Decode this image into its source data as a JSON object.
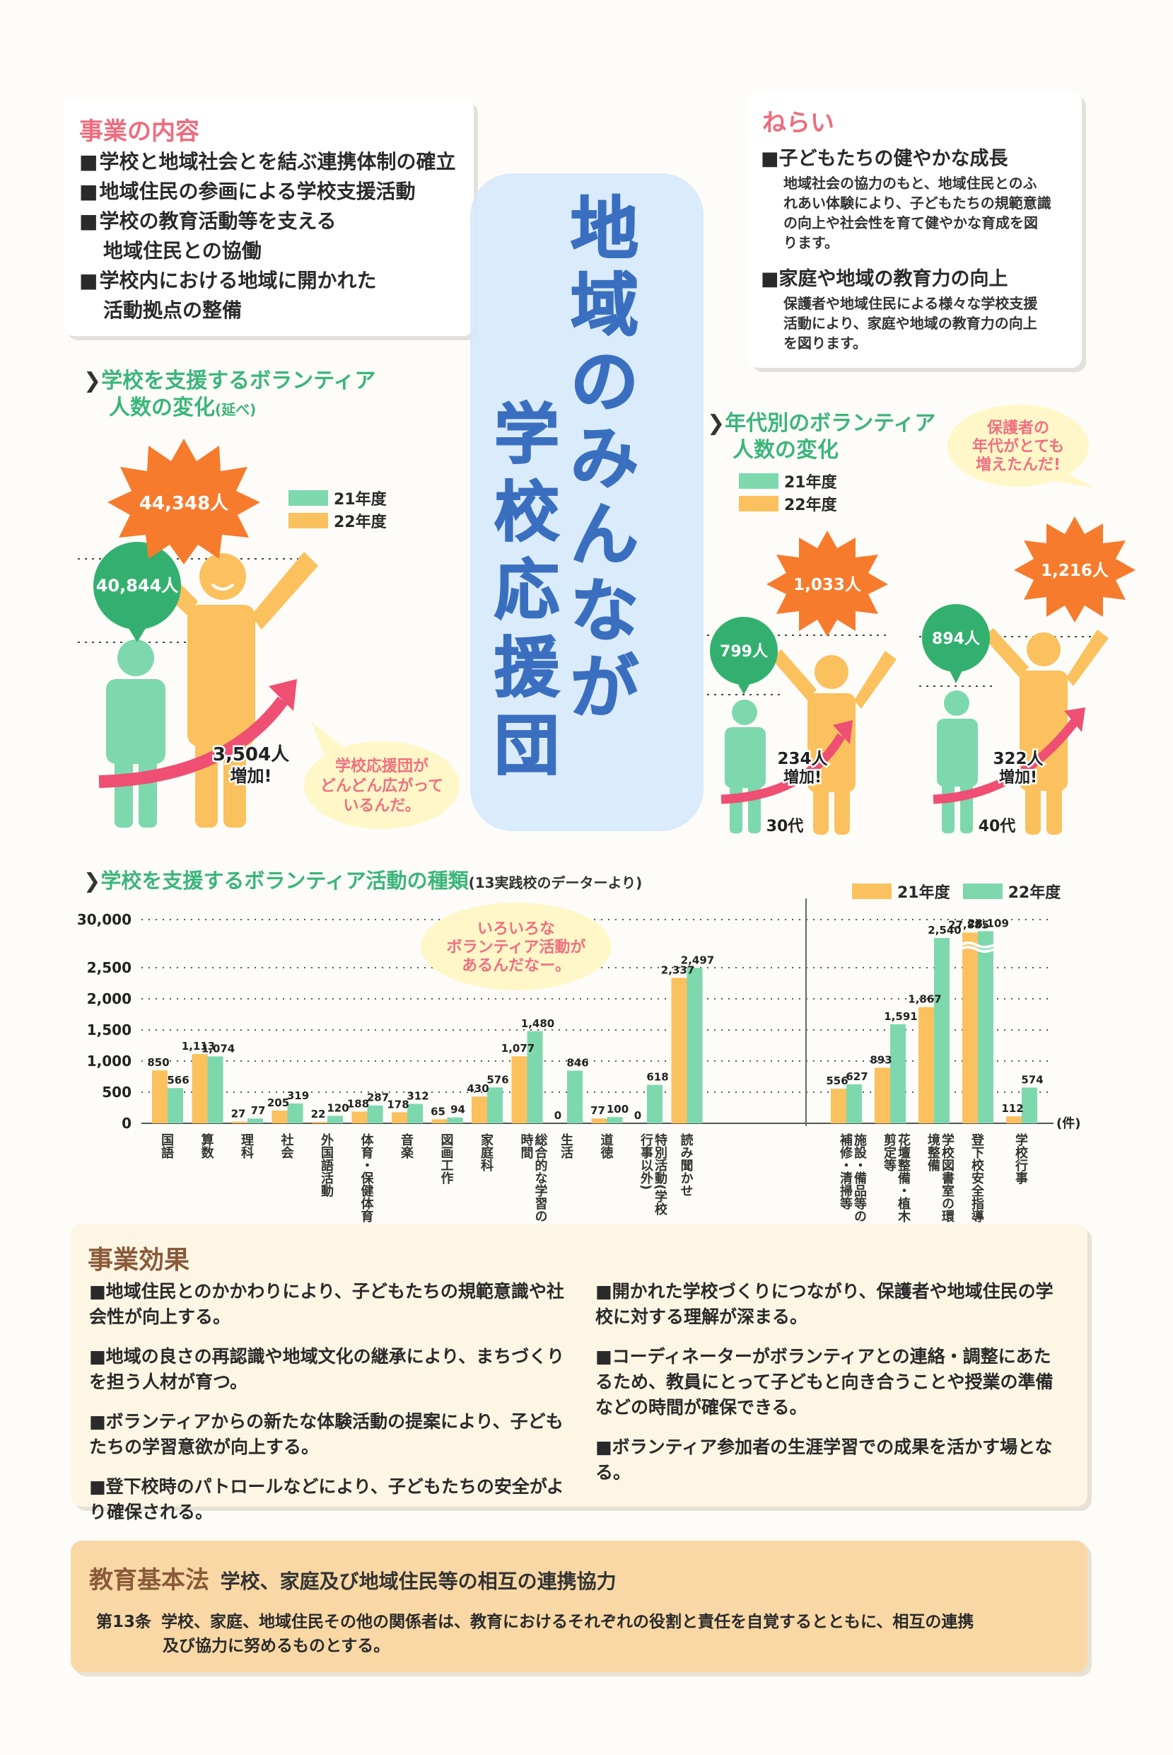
{
  "content_section": {
    "heading": "事業の内容",
    "items": [
      "学校と地域社会とを結ぶ連携体制の確立",
      "地域住民の参画による学校支援活動",
      "学校の教育活動等を支える",
      "地域住民との協働",
      "学校内における地域に開かれた",
      "活動拠点の整備"
    ]
  },
  "main_title": [
    "地",
    "域",
    "の",
    "み",
    "ん",
    "な",
    "が",
    "学",
    "校",
    "応",
    "援",
    "団"
  ],
  "aims": {
    "heading": "ねらい",
    "item1_title": "子どもたちの健やかな成長",
    "item1_body": [
      "地域社会の協力のもと、地域住民とのふ",
      "れあい体験により、子どもたちの規範意識",
      "の向上や社会性を育て健やかな育成を図",
      "ります。"
    ],
    "item2_title": "家庭や地域の教育力の向上",
    "item2_body": [
      "保護者や地域住民による様々な学校支援",
      "活動により、家庭や地域の教育力の向上",
      "を図ります。"
    ]
  },
  "volunteer_total": {
    "title_line1": "学校を支援するボランティア",
    "title_line2": "人数の変化",
    "title_note": "(延べ)",
    "legend": [
      "21年度",
      "22年度"
    ],
    "value_21": "40,844人",
    "value_22": "44,348人",
    "increase_line1": "3,504人",
    "increase_line2": "増加!",
    "speech": [
      "学校応援団が",
      "どんどん広がって",
      "いるんだ。"
    ]
  },
  "volunteer_age": {
    "title_line1": "年代別のボランティア",
    "title_line2": "人数の変化",
    "legend": [
      "21年度",
      "22年度"
    ],
    "speech": [
      "保護者の",
      "年代がとても",
      "増えたんだ!"
    ],
    "groups": [
      {
        "label": "30代",
        "v21": "799人",
        "v22": "1,033人",
        "inc1": "234人",
        "inc2": "増加!"
      },
      {
        "label": "40代",
        "v21": "894人",
        "v22": "1,216人",
        "inc1": "322人",
        "inc2": "増加!"
      }
    ]
  },
  "chart_data": {
    "type": "bar",
    "title": "学校を支援するボランティア活動の種類",
    "subtitle": "(13実践校のデーターより)",
    "unit": "(件)",
    "y_ticks": [
      "30,000",
      "2,500",
      "2,000",
      "1,500",
      "1,000",
      "500",
      "0"
    ],
    "axis_break": true,
    "categories": [
      "国語",
      "算数",
      "理科",
      "社会",
      "外国語活動",
      "体育・保健体育",
      "音楽",
      "図画工作",
      "家庭科",
      "総合的な学習の時間",
      "生活",
      "道徳",
      "特別活動(学校行事以外)",
      "読み聞かせ",
      "施設・備品等の補修・清掃等",
      "花壇整備・植木剪定等",
      "学校図書室の環境整備",
      "登下校安全指導",
      "学校行事"
    ],
    "series": [
      {
        "name": "21年度",
        "values": [
          850,
          1113,
          27,
          205,
          22,
          188,
          178,
          65,
          430,
          1077,
          0,
          77,
          0,
          2337,
          556,
          893,
          1867,
          27885,
          112
        ]
      },
      {
        "name": "22年度",
        "values": [
          566,
          1074,
          77,
          319,
          120,
          287,
          312,
          94,
          576,
          1480,
          846,
          100,
          618,
          2497,
          627,
          1591,
          2540,
          28109,
          574
        ]
      }
    ],
    "value_labels_21": [
      "850",
      "1,113",
      "27",
      "205",
      "22",
      "188",
      "178",
      "65",
      "430",
      "1,077",
      "0",
      "77",
      "0",
      "2,337",
      "556",
      "893",
      "1,867",
      "27,885",
      "112"
    ],
    "value_labels_22": [
      "566",
      "1,074",
      "77",
      "319",
      "120",
      "287",
      "312",
      "94",
      "576",
      "1,480",
      "846",
      "100",
      "618",
      "2,497",
      "627",
      "1,591",
      "2,540",
      "28,109",
      "574"
    ],
    "speech": [
      "いろいろな",
      "ボランティア活動が",
      "あるんだなー。"
    ],
    "colors": {
      "y21": "#fbc15e",
      "y22": "#7dd8ae"
    }
  },
  "effects": {
    "heading": "事業効果",
    "left": [
      "地域住民とのかかわりにより、子どもたちの規範意識や社会性が向上する。",
      "地域の良さの再認識や地域文化の継承により、まちづくりを担う人材が育つ。",
      "ボランティアからの新たな体験活動の提案により、子どもたちの学習意欲が向上する。",
      "登下校時のパトロールなどにより、子どもたちの安全がより確保される。"
    ],
    "right": [
      "開かれた学校づくりにつながり、保護者や地域住民の学校に対する理解が深まる。",
      "コーディネーターがボランティアとの連絡・調整にあたるため、教員にとって子どもと向き合うことや授業の準備などの時間が確保できる。",
      "ボランティア参加者の生涯学習での成果を活かす場となる。"
    ]
  },
  "law": {
    "heading": "教育基本法",
    "subheading": "学校、家庭及び地域住民等の相互の連携協力",
    "article": "第13条",
    "text_line1": "学校、家庭、地域住民その他の関係者は、教育におけるそれぞれの役割と責任を自覚するとともに、相互の連携",
    "text_line2": "及び協力に努めるものとする。"
  }
}
